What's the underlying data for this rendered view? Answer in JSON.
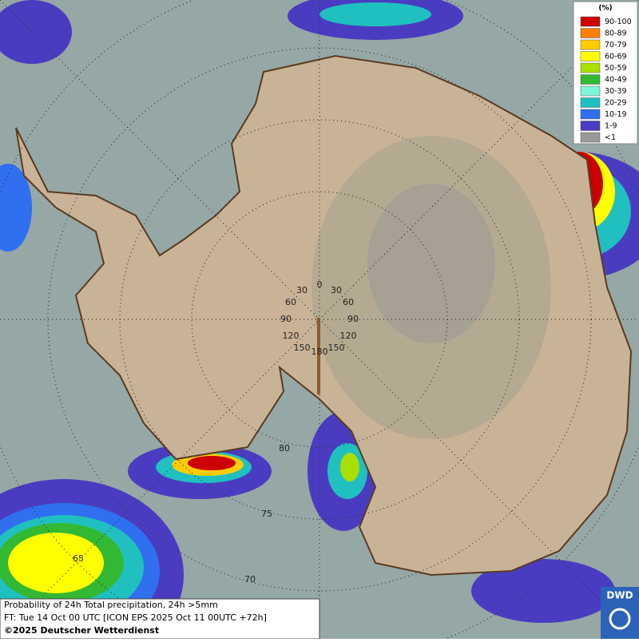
{
  "legend": {
    "title": "(%)",
    "items": [
      {
        "label": "90-100",
        "color": "#cc0000"
      },
      {
        "label": "80-89",
        "color": "#ff7f00"
      },
      {
        "label": "70-79",
        "color": "#ffcc00"
      },
      {
        "label": "60-69",
        "color": "#ffff00"
      },
      {
        "label": "50-59",
        "color": "#a8e000"
      },
      {
        "label": "40-49",
        "color": "#33b833"
      },
      {
        "label": "30-39",
        "color": "#7ff5d8"
      },
      {
        "label": "20-29",
        "color": "#20c0c0"
      },
      {
        "label": "10-19",
        "color": "#2f6ff0"
      },
      {
        "label": "1-9",
        "color": "#4a3cc0"
      },
      {
        "label": "<1",
        "color": "#999999"
      }
    ]
  },
  "graticule_labels": [
    "0",
    "30",
    "30",
    "60",
    "60",
    "90",
    "90",
    "120",
    "120",
    "150",
    "150",
    "180",
    "80",
    "75",
    "65",
    "70"
  ],
  "caption": [
    "Probability of 24h Total precipitation, 24h >5mm",
    "FT: Tue 14 Oct 00 UTC [ICON EPS 2025 Oct 11 00UTC +72h]",
    "©2025 Deutscher Wetterdienst"
  ],
  "logo": "DWD"
}
